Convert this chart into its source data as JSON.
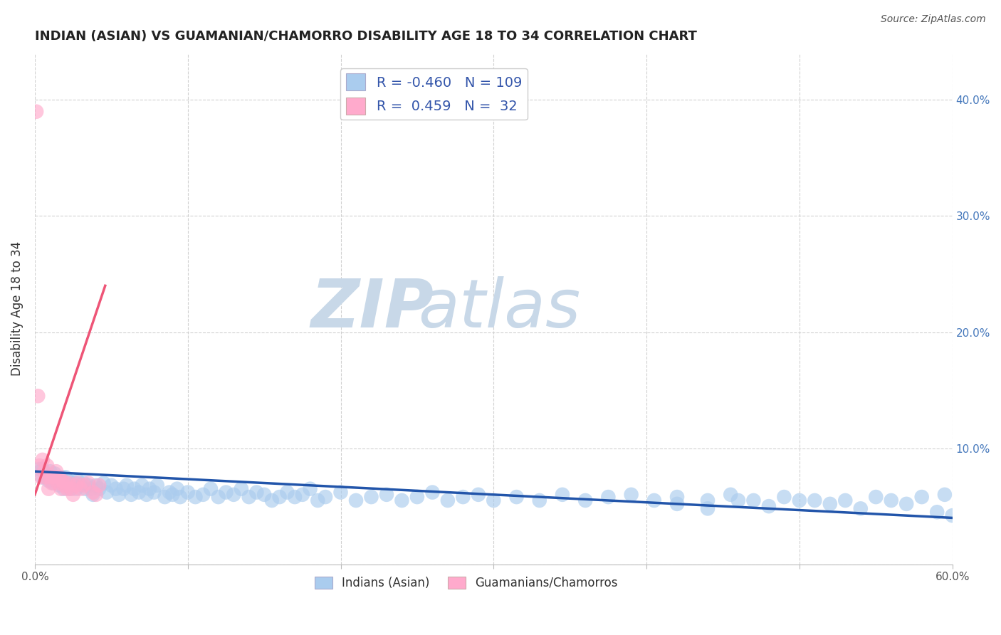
{
  "title": "INDIAN (ASIAN) VS GUAMANIAN/CHAMORRO DISABILITY AGE 18 TO 34 CORRELATION CHART",
  "source": "Source: ZipAtlas.com",
  "ylabel": "Disability Age 18 to 34",
  "xlim": [
    0.0,
    0.6
  ],
  "ylim": [
    0.0,
    0.44
  ],
  "xticks": [
    0.0,
    0.1,
    0.2,
    0.3,
    0.4,
    0.5,
    0.6
  ],
  "yticks": [
    0.0,
    0.1,
    0.2,
    0.3,
    0.4
  ],
  "xtick_labels": [
    "0.0%",
    "",
    "",
    "",
    "",
    "",
    "60.0%"
  ],
  "ytick_labels_right": [
    "",
    "10.0%",
    "20.0%",
    "30.0%",
    "40.0%"
  ],
  "background_color": "#ffffff",
  "grid_color": "#cccccc",
  "title_fontsize": 13,
  "watermark_zip": "ZIP",
  "watermark_atlas": "atlas",
  "watermark_color": "#c8d8e8",
  "legend_R1": "-0.460",
  "legend_N1": "109",
  "legend_R2": "0.459",
  "legend_N2": "32",
  "blue_scatter_color": "#aaccee",
  "pink_scatter_color": "#ffaacc",
  "blue_line_color": "#2255aa",
  "pink_line_color": "#ee5577",
  "blue_dots_x": [
    0.003,
    0.005,
    0.005,
    0.007,
    0.008,
    0.009,
    0.01,
    0.011,
    0.012,
    0.013,
    0.015,
    0.016,
    0.017,
    0.018,
    0.019,
    0.02,
    0.021,
    0.022,
    0.023,
    0.025,
    0.026,
    0.027,
    0.028,
    0.03,
    0.032,
    0.033,
    0.035,
    0.037,
    0.038,
    0.04,
    0.042,
    0.045,
    0.047,
    0.05,
    0.053,
    0.055,
    0.058,
    0.06,
    0.063,
    0.065,
    0.068,
    0.07,
    0.073,
    0.075,
    0.078,
    0.08,
    0.085,
    0.088,
    0.09,
    0.093,
    0.095,
    0.1,
    0.105,
    0.11,
    0.115,
    0.12,
    0.125,
    0.13,
    0.135,
    0.14,
    0.145,
    0.15,
    0.155,
    0.16,
    0.165,
    0.17,
    0.175,
    0.18,
    0.185,
    0.19,
    0.2,
    0.21,
    0.22,
    0.23,
    0.24,
    0.25,
    0.26,
    0.27,
    0.28,
    0.29,
    0.3,
    0.315,
    0.33,
    0.345,
    0.36,
    0.375,
    0.39,
    0.405,
    0.42,
    0.44,
    0.455,
    0.47,
    0.49,
    0.51,
    0.53,
    0.55,
    0.57,
    0.59,
    0.6,
    0.595,
    0.58,
    0.56,
    0.54,
    0.52,
    0.5,
    0.48,
    0.46,
    0.44,
    0.42
  ],
  "blue_dots_y": [
    0.082,
    0.082,
    0.075,
    0.078,
    0.075,
    0.072,
    0.08,
    0.075,
    0.07,
    0.078,
    0.072,
    0.068,
    0.075,
    0.07,
    0.065,
    0.075,
    0.068,
    0.072,
    0.065,
    0.068,
    0.07,
    0.065,
    0.072,
    0.068,
    0.07,
    0.065,
    0.068,
    0.065,
    0.06,
    0.068,
    0.065,
    0.07,
    0.062,
    0.068,
    0.065,
    0.06,
    0.065,
    0.068,
    0.06,
    0.065,
    0.062,
    0.068,
    0.06,
    0.065,
    0.062,
    0.068,
    0.058,
    0.062,
    0.06,
    0.065,
    0.058,
    0.062,
    0.058,
    0.06,
    0.065,
    0.058,
    0.062,
    0.06,
    0.065,
    0.058,
    0.062,
    0.06,
    0.055,
    0.058,
    0.062,
    0.058,
    0.06,
    0.065,
    0.055,
    0.058,
    0.062,
    0.055,
    0.058,
    0.06,
    0.055,
    0.058,
    0.062,
    0.055,
    0.058,
    0.06,
    0.055,
    0.058,
    0.055,
    0.06,
    0.055,
    0.058,
    0.06,
    0.055,
    0.058,
    0.055,
    0.06,
    0.055,
    0.058,
    0.055,
    0.055,
    0.058,
    0.052,
    0.045,
    0.042,
    0.06,
    0.058,
    0.055,
    0.048,
    0.052,
    0.055,
    0.05,
    0.055,
    0.048,
    0.052
  ],
  "pink_dots_x": [
    0.001,
    0.002,
    0.003,
    0.004,
    0.005,
    0.006,
    0.007,
    0.008,
    0.009,
    0.01,
    0.011,
    0.012,
    0.013,
    0.014,
    0.015,
    0.016,
    0.017,
    0.018,
    0.019,
    0.02,
    0.021,
    0.022,
    0.024,
    0.025,
    0.027,
    0.028,
    0.03,
    0.032,
    0.035,
    0.038,
    0.04,
    0.042
  ],
  "pink_dots_y": [
    0.39,
    0.145,
    0.085,
    0.075,
    0.09,
    0.08,
    0.075,
    0.085,
    0.065,
    0.075,
    0.07,
    0.075,
    0.075,
    0.08,
    0.07,
    0.075,
    0.065,
    0.072,
    0.068,
    0.07,
    0.065,
    0.07,
    0.065,
    0.06,
    0.068,
    0.07,
    0.065,
    0.068,
    0.07,
    0.062,
    0.06,
    0.068
  ],
  "blue_trend_x": [
    0.0,
    0.6
  ],
  "blue_trend_y": [
    0.08,
    0.04
  ],
  "pink_trend_x": [
    0.0,
    0.046
  ],
  "pink_trend_y": [
    0.06,
    0.24
  ]
}
